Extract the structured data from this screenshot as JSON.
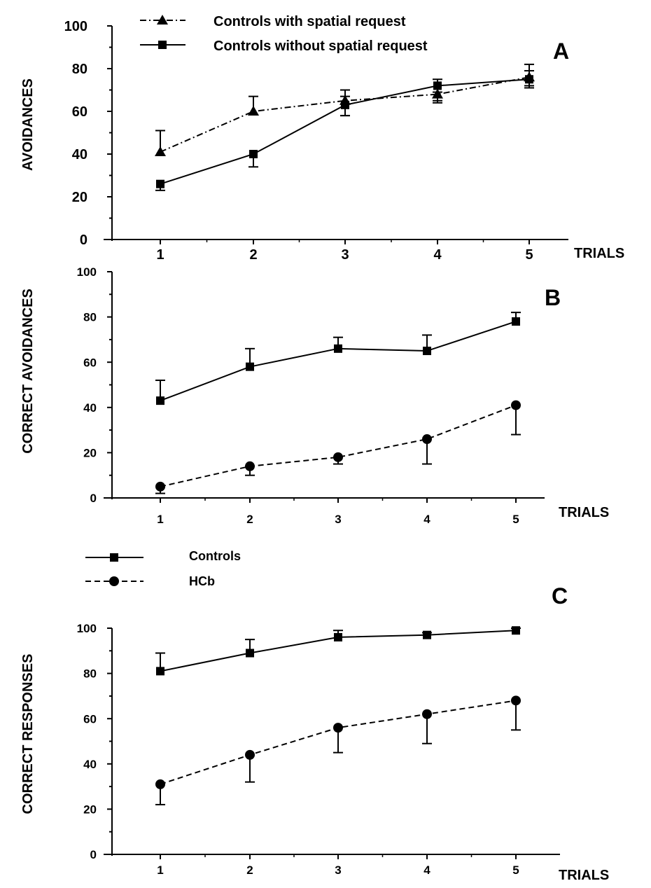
{
  "legend_top": [
    {
      "label": "Controls with spatial request",
      "marker": "triangle",
      "dash": "dashdot"
    },
    {
      "label": "Controls without spatial request",
      "marker": "square",
      "dash": "solid"
    }
  ],
  "legend_bottom": [
    {
      "label": "Controls",
      "marker": "square",
      "dash": "solid"
    },
    {
      "label": "HCb",
      "marker": "circle",
      "dash": "dashed"
    }
  ],
  "chart_data": [
    {
      "panel": "A",
      "type": "line",
      "ylabel": "AVOIDANCES",
      "xlabel": "TRIALS",
      "categories": [
        "1",
        "2",
        "3",
        "4",
        "5"
      ],
      "yticks": [
        "0",
        "20",
        "40",
        "60",
        "80",
        "100"
      ],
      "ylim": [
        0,
        100
      ],
      "series": [
        {
          "name": "Controls with spatial request",
          "marker": "triangle",
          "dash": "dashdot",
          "values": [
            41,
            60,
            65,
            68,
            76
          ],
          "error_upper": [
            51,
            67,
            70,
            65,
            82
          ],
          "error_lower": [
            null,
            null,
            58,
            64,
            71
          ]
        },
        {
          "name": "Controls without spatial request",
          "marker": "square",
          "dash": "solid",
          "values": [
            26,
            40,
            63,
            72,
            75
          ],
          "error_upper": [
            null,
            null,
            67,
            75,
            79
          ],
          "error_lower": [
            23,
            34,
            58,
            69,
            72
          ]
        }
      ]
    },
    {
      "panel": "B",
      "type": "line",
      "ylabel": "CORRECT AVOIDANCES",
      "xlabel": "TRIALS",
      "categories": [
        "1",
        "2",
        "3",
        "4",
        "5"
      ],
      "yticks": [
        "0",
        "20",
        "40",
        "60",
        "80",
        "100"
      ],
      "ylim": [
        0,
        100
      ],
      "series": [
        {
          "name": "Controls",
          "marker": "square",
          "dash": "solid",
          "values": [
            43,
            58,
            66,
            65,
            78
          ],
          "error_upper": [
            52,
            66,
            71,
            72,
            82
          ],
          "error_lower": [
            null,
            null,
            null,
            null,
            null
          ]
        },
        {
          "name": "HCb",
          "marker": "circle",
          "dash": "dashed",
          "values": [
            5,
            14,
            18,
            26,
            41
          ],
          "error_upper": [
            null,
            null,
            null,
            null,
            null
          ],
          "error_lower": [
            2,
            10,
            15,
            15,
            28
          ]
        }
      ]
    },
    {
      "panel": "C",
      "type": "line",
      "ylabel": "CORRECT RESPONSES",
      "xlabel": "TRIALS",
      "categories": [
        "1",
        "2",
        "3",
        "4",
        "5"
      ],
      "yticks": [
        "0",
        "20",
        "40",
        "60",
        "80",
        "100"
      ],
      "ylim": [
        0,
        100
      ],
      "series": [
        {
          "name": "Controls",
          "marker": "square",
          "dash": "solid",
          "values": [
            81,
            89,
            96,
            97,
            99
          ],
          "error_upper": [
            89,
            95,
            99,
            98,
            100
          ],
          "error_lower": [
            null,
            null,
            null,
            null,
            null
          ]
        },
        {
          "name": "HCb",
          "marker": "circle",
          "dash": "dashed",
          "values": [
            31,
            44,
            56,
            62,
            68
          ],
          "error_upper": [
            null,
            null,
            null,
            null,
            null
          ],
          "error_lower": [
            22,
            32,
            45,
            49,
            55
          ]
        }
      ]
    }
  ]
}
